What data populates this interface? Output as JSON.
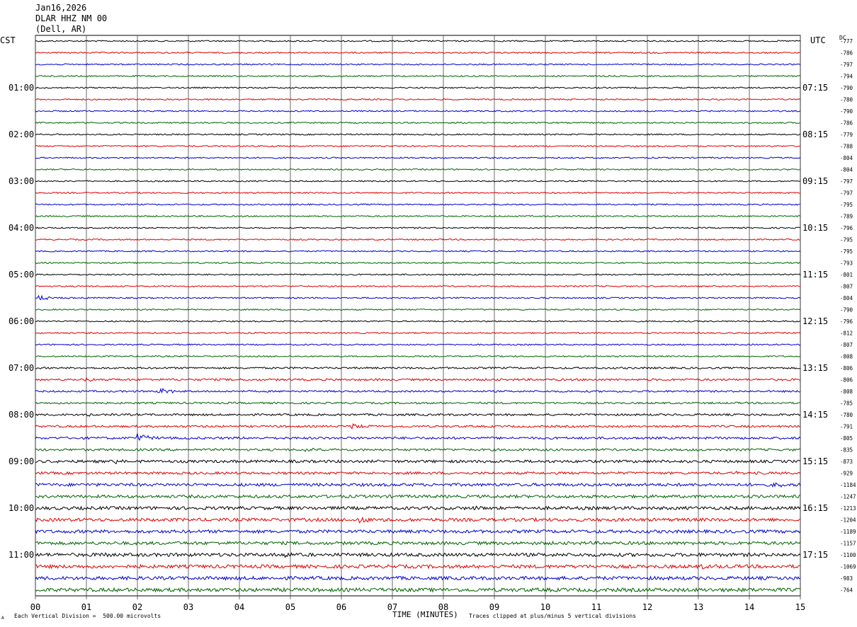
{
  "header": {
    "date": "Jan16,2026",
    "station": "DLAR HHZ NM 00",
    "location": "(Dell, AR)"
  },
  "left_tz": "CST",
  "right_tz": "UTC",
  "dc_label": "DC",
  "footer": {
    "scale_note": "Each Vertical Division =  500.00 microvolts",
    "clip_note": "Traces clipped at plus/minus 5 vertical divisions",
    "corner_mark": "A"
  },
  "colors": {
    "cycle": [
      "#000000",
      "#dd0000",
      "#0000cc",
      "#006400"
    ],
    "grid": "#000000"
  },
  "chart_data": {
    "type": "line",
    "title": "DLAR HHZ NM 00",
    "xlabel": "TIME (MINUTES)",
    "x_ticks": [
      "00",
      "01",
      "02",
      "03",
      "04",
      "05",
      "06",
      "07",
      "08",
      "09",
      "10",
      "11",
      "12",
      "13",
      "14",
      "15"
    ],
    "xlim": [
      0,
      15
    ],
    "grid": true,
    "left_time_labels": [
      "01:00",
      "02:00",
      "03:00",
      "04:00",
      "05:00",
      "06:00",
      "07:00",
      "08:00",
      "09:00",
      "10:00",
      "11:00"
    ],
    "right_time_labels": [
      "07:15",
      "08:15",
      "09:15",
      "10:15",
      "11:15",
      "12:15",
      "13:15",
      "14:15",
      "15:15",
      "16:15",
      "17:15"
    ],
    "dc_offsets": [
      "-777",
      "-786",
      "-797",
      "-794",
      "-790",
      "-780",
      "-790",
      "-786",
      "-779",
      "-788",
      "-804",
      "-804",
      "-797",
      "-797",
      "-795",
      "-789",
      "-796",
      "-795",
      "-795",
      "-793",
      "-801",
      "-807",
      "-804",
      "-790",
      "-796",
      "-812",
      "-807",
      "-808",
      "-806",
      "-806",
      "-808",
      "-785",
      "-780",
      "-791",
      "-805",
      "-835",
      "-873",
      "-929",
      "-1184",
      "-1247",
      "-1213",
      "-1204",
      "-1189",
      "-1157",
      "-1100",
      "-1069",
      "-983",
      "-764"
    ],
    "trace_noise": [
      0.6,
      0.6,
      0.6,
      0.6,
      0.6,
      0.6,
      0.6,
      0.6,
      0.6,
      0.6,
      0.6,
      0.6,
      0.6,
      0.6,
      0.6,
      0.6,
      0.6,
      0.6,
      0.6,
      0.6,
      0.6,
      0.6,
      0.6,
      0.6,
      0.6,
      0.6,
      0.6,
      0.6,
      0.8,
      0.9,
      0.8,
      0.8,
      0.9,
      0.9,
      1.0,
      1.0,
      1.2,
      1.1,
      1.3,
      1.3,
      1.4,
      1.4,
      1.4,
      1.4,
      1.5,
      1.5,
      1.5,
      1.6
    ],
    "events": [
      {
        "trace": 22,
        "minute": 0.1,
        "amp": 4
      },
      {
        "trace": 29,
        "minute": 1.0,
        "amp": 2
      },
      {
        "trace": 30,
        "minute": 2.45,
        "amp": 5
      },
      {
        "trace": 32,
        "minute": 1.0,
        "amp": 2
      },
      {
        "trace": 33,
        "minute": 6.25,
        "amp": 5
      },
      {
        "trace": 34,
        "minute": 2.05,
        "amp": 6
      },
      {
        "trace": 35,
        "minute": 5.3,
        "amp": 2
      },
      {
        "trace": 36,
        "minute": 1.6,
        "amp": 3
      },
      {
        "trace": 37,
        "minute": 13.7,
        "amp": 2
      },
      {
        "trace": 38,
        "minute": 14.5,
        "amp": 3
      },
      {
        "trace": 40,
        "minute": 8.6,
        "amp": 2
      },
      {
        "trace": 41,
        "minute": 6.4,
        "amp": 6
      },
      {
        "trace": 44,
        "minute": 4.9,
        "amp": 3
      },
      {
        "trace": 44,
        "minute": 1.3,
        "amp": 2
      },
      {
        "trace": 45,
        "minute": 13.1,
        "amp": 2
      }
    ]
  }
}
